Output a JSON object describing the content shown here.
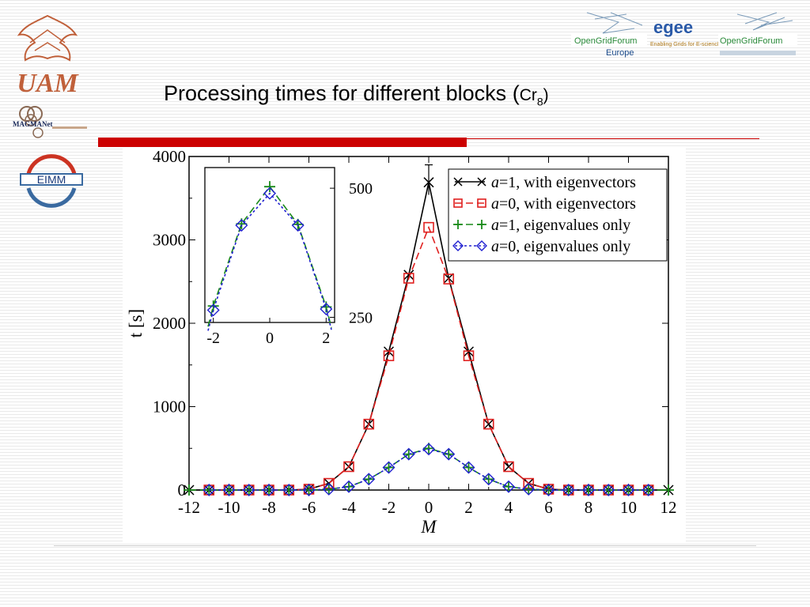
{
  "slide": {
    "title": "Processing times for different blocks (",
    "title_chem": "Cr",
    "title_sub": "8",
    "title_close": ")"
  },
  "logos": {
    "uam": "UAM",
    "magma": "MAGMANet",
    "eimm": "EIMM",
    "ogf_left": "OpenGridForum",
    "ogf_left_sub": "Europe",
    "egee": "egee",
    "egee_sub": "Enabling Grids for E-sciencE",
    "ogf_right": "OpenGridForum"
  },
  "colors": {
    "slide_red": "#cc0000",
    "series_a1_vec": "#000000",
    "series_a0_vec": "#e0201f",
    "series_a1_val": "#1a8a1a",
    "series_a0_val": "#2020d0"
  },
  "chart_data": {
    "type": "line",
    "xlabel": "M",
    "ylabel": "t  [s]",
    "xlim": [
      -12,
      12
    ],
    "ylim": [
      0,
      4000
    ],
    "xticks": [
      -12,
      -10,
      -8,
      -6,
      -4,
      -2,
      0,
      2,
      4,
      6,
      8,
      10,
      12
    ],
    "yticks": [
      0,
      1000,
      2000,
      3000,
      4000
    ],
    "legend_position": "top-right",
    "series": [
      {
        "name": "a=1, with eigenvectors",
        "label_italic": "a",
        "label_rest": "=1, with eigenvectors",
        "color": "#000000",
        "marker": "x",
        "dash": "solid",
        "x": [
          -12,
          -11,
          -10,
          -9,
          -8,
          -7,
          -6,
          -5,
          -4,
          -3,
          -2,
          -1,
          0,
          1,
          2,
          3,
          4,
          5,
          6,
          7,
          8,
          9,
          10,
          11,
          12
        ],
        "y": [
          0,
          0,
          0,
          0,
          0,
          0,
          10,
          80,
          280,
          790,
          1660,
          2580,
          3690,
          2540,
          1660,
          790,
          280,
          80,
          10,
          0,
          0,
          0,
          0,
          0,
          0
        ]
      },
      {
        "name": "a=0, with eigenvectors",
        "label_italic": "a",
        "label_rest": "=0, with eigenvectors",
        "color": "#e0201f",
        "marker": "square",
        "dash": "dashed",
        "x": [
          -11,
          -10,
          -9,
          -8,
          -7,
          -6,
          -5,
          -4,
          -3,
          -2,
          -1,
          0,
          1,
          2,
          3,
          4,
          5,
          6,
          7,
          8,
          9,
          10,
          11
        ],
        "y": [
          0,
          0,
          0,
          0,
          0,
          10,
          80,
          280,
          790,
          1610,
          2540,
          3150,
          2530,
          1610,
          790,
          280,
          80,
          10,
          0,
          0,
          0,
          0,
          0
        ]
      },
      {
        "name": "a=1, eigenvalues only",
        "label_italic": "a",
        "label_rest": "=1, eigenvalues only",
        "color": "#1a8a1a",
        "marker": "plus",
        "dash": "dashed",
        "x": [
          -12,
          -11,
          -10,
          -9,
          -8,
          -7,
          -6,
          -5,
          -4,
          -3,
          -2,
          -1,
          0,
          1,
          2,
          3,
          4,
          5,
          6,
          7,
          8,
          9,
          10,
          11,
          12
        ],
        "y": [
          0,
          0,
          0,
          0,
          0,
          0,
          0,
          10,
          40,
          130,
          270,
          430,
          500,
          430,
          270,
          130,
          40,
          10,
          0,
          0,
          0,
          0,
          0,
          0,
          0
        ]
      },
      {
        "name": "a=0, eigenvalues only",
        "label_italic": "a",
        "label_rest": "=0, eigenvalues only",
        "color": "#2020d0",
        "marker": "diamond",
        "dash": "dotted",
        "x": [
          -11,
          -10,
          -9,
          -8,
          -7,
          -6,
          -5,
          -4,
          -3,
          -2,
          -1,
          0,
          1,
          2,
          3,
          4,
          5,
          6,
          7,
          8,
          9,
          10,
          11
        ],
        "y": [
          0,
          0,
          0,
          0,
          0,
          0,
          10,
          40,
          130,
          270,
          430,
          490,
          430,
          270,
          130,
          40,
          10,
          0,
          0,
          0,
          0,
          0,
          0
        ]
      }
    ],
    "error_bar": {
      "x": 0,
      "y": 3690,
      "low": 3540,
      "high": 3900
    },
    "inset": {
      "xlim": [
        -2.3,
        2.3
      ],
      "ylim": [
        240,
        540
      ],
      "xticks": [
        -2,
        0,
        2
      ],
      "yticks": [
        250,
        500
      ],
      "series": [
        {
          "name": "a=1, eigenvalues only",
          "x": [
            -2,
            -1,
            0,
            1,
            2
          ],
          "y": [
            272,
            431,
            503,
            430,
            270
          ]
        },
        {
          "name": "a=0, eigenvalues only",
          "x": [
            -2,
            -1,
            0,
            1,
            2
          ],
          "y": [
            264,
            428,
            490,
            428,
            266
          ]
        }
      ]
    }
  }
}
